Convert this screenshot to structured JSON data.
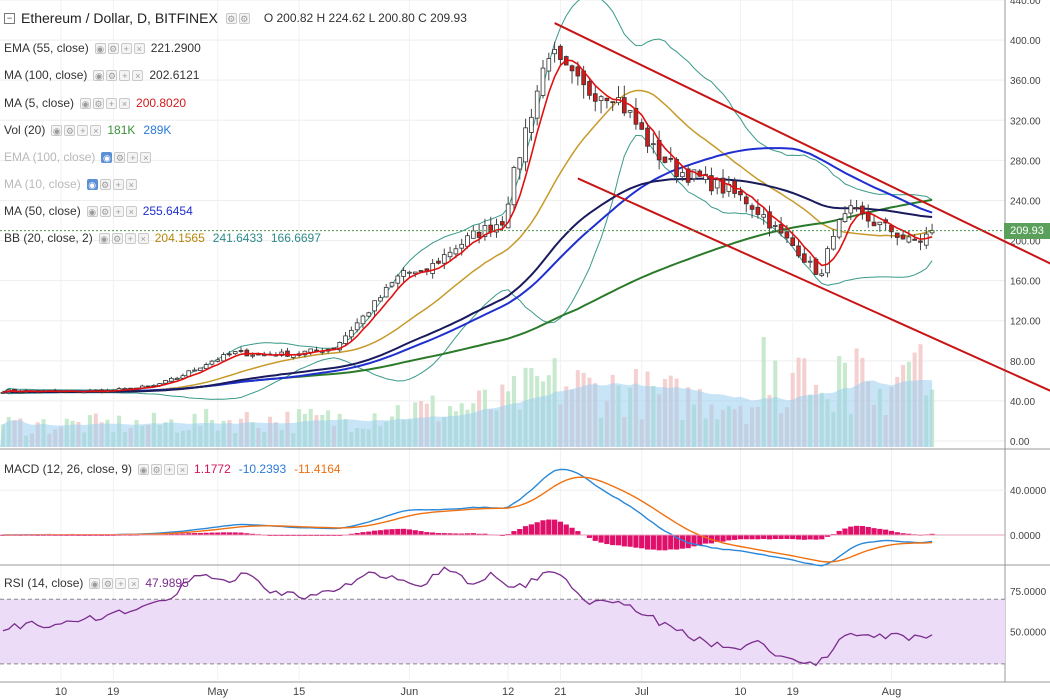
{
  "header": {
    "title": "Ethereum / Dollar, D, BITFINEX",
    "ohlc": "O 200.82  H 224.62  L 200.80  C 209.93"
  },
  "indicators": [
    {
      "name": "EMA (55, close)",
      "values": [
        "221.2900"
      ],
      "colors": [
        "#333333"
      ],
      "faded": false
    },
    {
      "name": "MA (100, close)",
      "values": [
        "202.6121"
      ],
      "colors": [
        "#333333"
      ],
      "faded": false
    },
    {
      "name": "MA (5, close)",
      "values": [
        "200.8020"
      ],
      "colors": [
        "#d11a1a"
      ],
      "faded": false
    },
    {
      "name": "Vol (20)",
      "values": [
        "181K",
        "289K"
      ],
      "colors": [
        "#3b8f3b",
        "#2a7ad9"
      ],
      "faded": false
    },
    {
      "name": "EMA (100, close)",
      "values": [],
      "colors": [],
      "faded": true
    },
    {
      "name": "MA (10, close)",
      "values": [],
      "colors": [],
      "faded": true
    },
    {
      "name": "MA (50, close)",
      "values": [
        "255.6454"
      ],
      "colors": [
        "#1f2fd0"
      ],
      "faded": false
    },
    {
      "name": "BB (20, close, 2)",
      "values": [
        "204.1565",
        "241.6433",
        "166.6697"
      ],
      "colors": [
        "#b8860b",
        "#2e8b8b",
        "#2e8b8b"
      ],
      "faded": false
    }
  ],
  "macd_legend": {
    "name": "MACD (12, 26, close, 9)",
    "values": [
      "1.1772",
      "-10.2393",
      "-11.4164"
    ],
    "colors": [
      "#d4145a",
      "#2a7ad9",
      "#f07010"
    ]
  },
  "rsi_legend": {
    "name": "RSI (14, close)",
    "values": [
      "47.9895"
    ],
    "colors": [
      "#7b2d8e"
    ]
  },
  "last_price_label": "209.93",
  "colors": {
    "bull": "#2e8b3a",
    "bear": "#d11a1a",
    "ma5": "#e01010",
    "ema55": "#1a1a5e",
    "ma100": "#2a7a2a",
    "ma50": "#1f2fd0",
    "bb_mid": "#c79a2a",
    "bb_band": "#3a9a8a",
    "channel": "#c81414",
    "vol_ma": "#9ad0f0",
    "macd_hist": "#e0106a",
    "macd_line": "#2a88d8",
    "signal_line": "#f07010",
    "rsi_line": "#7b2d8e",
    "rsi_band": "#ecdcf7"
  },
  "chart_data": [
    {
      "type": "candlestick",
      "title": "Ethereum / Dollar, D, BITFINEX",
      "x_tick_labels": [
        "10",
        "19",
        "May",
        "15",
        "Jun",
        "12",
        "21",
        "Jul",
        "10",
        "19",
        "Aug"
      ],
      "y_tick_labels": [
        "440.00",
        "400.00",
        "360.00",
        "320.00",
        "280.00",
        "240.00",
        "200.00",
        "160.00",
        "120.00",
        "80.00",
        "40.00",
        "0.00"
      ],
      "ylim": [
        0,
        440
      ],
      "anchors_close": [
        [
          0,
          50
        ],
        [
          10,
          49
        ],
        [
          18,
          50
        ],
        [
          22,
          52
        ],
        [
          26,
          55
        ],
        [
          30,
          63
        ],
        [
          36,
          80
        ],
        [
          40,
          88
        ],
        [
          45,
          86
        ],
        [
          50,
          87
        ],
        [
          57,
          93
        ],
        [
          63,
          130
        ],
        [
          69,
          170
        ],
        [
          72,
          165
        ],
        [
          77,
          190
        ],
        [
          81,
          205
        ],
        [
          86,
          220
        ],
        [
          90,
          310
        ],
        [
          94,
          390
        ],
        [
          96,
          372
        ],
        [
          100,
          350
        ],
        [
          105,
          348
        ],
        [
          108,
          325
        ],
        [
          112,
          290
        ],
        [
          116,
          270
        ],
        [
          120,
          262
        ],
        [
          124,
          252
        ],
        [
          128,
          240
        ],
        [
          131,
          225
        ],
        [
          134,
          205
        ],
        [
          137,
          190
        ],
        [
          139,
          175
        ],
        [
          141,
          165
        ],
        [
          143,
          210
        ],
        [
          146,
          228
        ],
        [
          150,
          218
        ],
        [
          153,
          210
        ],
        [
          156,
          199
        ],
        [
          158,
          200
        ],
        [
          160,
          210
        ]
      ],
      "volume_k": {
        "last": "181K",
        "ma20": "289K"
      },
      "descending_channel": {
        "upper": [
          [
            95,
            417
          ],
          [
            190,
            150
          ]
        ],
        "lower": [
          [
            99,
            262
          ],
          [
            190,
            25
          ]
        ]
      },
      "last_close": 209.93
    },
    {
      "type": "line",
      "title": "MACD (12, 26, close, 9)",
      "y_tick_labels": [
        "40.0000",
        "0.0000"
      ],
      "ylim": [
        -25,
        75
      ],
      "series": [
        {
          "name": "MACD",
          "last": -10.2393
        },
        {
          "name": "Signal",
          "last": -11.4164
        },
        {
          "name": "Histogram",
          "last": 1.1772
        }
      ]
    },
    {
      "type": "line",
      "title": "RSI (14, close)",
      "y_tick_labels": [
        "75.0000",
        "50.0000"
      ],
      "ylim": [
        20,
        90
      ],
      "bands": [
        30,
        70
      ],
      "anchors": [
        [
          0,
          53
        ],
        [
          10,
          55
        ],
        [
          20,
          62
        ],
        [
          28,
          68
        ],
        [
          33,
          85
        ],
        [
          38,
          80
        ],
        [
          42,
          86
        ],
        [
          46,
          73
        ],
        [
          52,
          72
        ],
        [
          58,
          78
        ],
        [
          63,
          85
        ],
        [
          67,
          83
        ],
        [
          72,
          78
        ],
        [
          76,
          90
        ],
        [
          80,
          80
        ],
        [
          84,
          85
        ],
        [
          88,
          75
        ],
        [
          94,
          88
        ],
        [
          97,
          82
        ],
        [
          100,
          68
        ],
        [
          106,
          70
        ],
        [
          110,
          60
        ],
        [
          114,
          55
        ],
        [
          118,
          47
        ],
        [
          122,
          43
        ],
        [
          126,
          40
        ],
        [
          130,
          42
        ],
        [
          134,
          35
        ],
        [
          137,
          32
        ],
        [
          140,
          30
        ],
        [
          143,
          40
        ],
        [
          146,
          50
        ],
        [
          150,
          48
        ],
        [
          154,
          47
        ],
        [
          157,
          46
        ],
        [
          160,
          48
        ]
      ],
      "last": 47.9895
    }
  ]
}
